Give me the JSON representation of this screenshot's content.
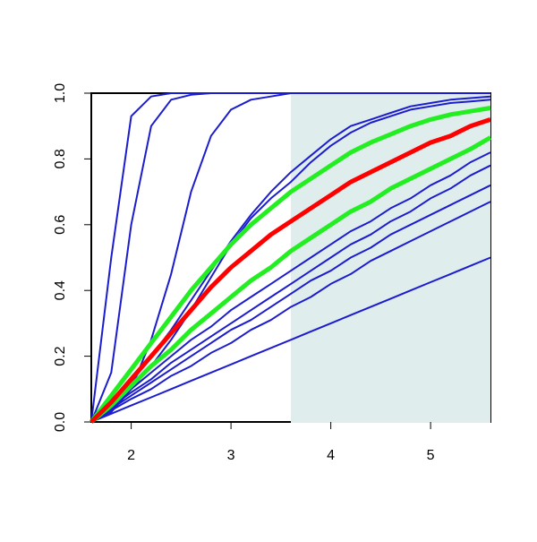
{
  "chart_data": {
    "type": "line",
    "x": [
      1.6,
      1.8,
      2.0,
      2.2,
      2.4,
      2.6,
      2.8,
      3.0,
      3.2,
      3.4,
      3.6,
      3.8,
      4.0,
      4.2,
      4.4,
      4.6,
      4.8,
      5.0,
      5.2,
      5.4,
      5.6
    ],
    "series": [
      {
        "color": "#1c1ccf",
        "values": [
          0,
          0.5,
          0.93,
          0.99,
          1,
          1,
          1,
          1,
          1,
          1,
          1,
          1,
          1,
          1,
          1,
          1,
          1,
          1,
          1,
          1,
          1
        ]
      },
      {
        "color": "#1c1ccf",
        "values": [
          0,
          0.15,
          0.6,
          0.9,
          0.98,
          0.995,
          1,
          1,
          1,
          1,
          1,
          1,
          1,
          1,
          1,
          1,
          1,
          1,
          1,
          1,
          1
        ]
      },
      {
        "color": "#1c1ccf",
        "values": [
          0,
          0.03,
          0.1,
          0.25,
          0.45,
          0.7,
          0.87,
          0.95,
          0.98,
          0.99,
          1,
          1,
          1,
          1,
          1,
          1,
          1,
          1,
          1,
          1,
          1
        ]
      },
      {
        "color": "#1c1ccf",
        "values": [
          0,
          0.04,
          0.1,
          0.17,
          0.25,
          0.34,
          0.44,
          0.54,
          0.62,
          0.68,
          0.73,
          0.79,
          0.84,
          0.88,
          0.91,
          0.93,
          0.95,
          0.96,
          0.97,
          0.975,
          0.98
        ]
      },
      {
        "color": "#1c1ccf",
        "values": [
          0,
          0.05,
          0.12,
          0.2,
          0.28,
          0.37,
          0.46,
          0.55,
          0.63,
          0.7,
          0.76,
          0.81,
          0.86,
          0.9,
          0.92,
          0.94,
          0.96,
          0.97,
          0.98,
          0.985,
          0.99
        ]
      },
      {
        "color": "#1c1ccf",
        "values": [
          0,
          0.05,
          0.1,
          0.15,
          0.2,
          0.25,
          0.29,
          0.34,
          0.38,
          0.42,
          0.46,
          0.5,
          0.54,
          0.58,
          0.61,
          0.65,
          0.68,
          0.72,
          0.75,
          0.79,
          0.82
        ]
      },
      {
        "color": "#1c1ccf",
        "values": [
          0,
          0.045,
          0.09,
          0.13,
          0.18,
          0.22,
          0.26,
          0.3,
          0.34,
          0.38,
          0.42,
          0.46,
          0.5,
          0.54,
          0.57,
          0.61,
          0.64,
          0.68,
          0.71,
          0.75,
          0.78
        ]
      },
      {
        "color": "#1c1ccf",
        "values": [
          0,
          0.04,
          0.08,
          0.12,
          0.16,
          0.2,
          0.24,
          0.28,
          0.31,
          0.35,
          0.39,
          0.43,
          0.46,
          0.5,
          0.53,
          0.57,
          0.6,
          0.63,
          0.66,
          0.69,
          0.72
        ]
      },
      {
        "color": "#1c1ccf",
        "values": [
          0,
          0.035,
          0.07,
          0.1,
          0.14,
          0.17,
          0.21,
          0.24,
          0.28,
          0.31,
          0.35,
          0.38,
          0.42,
          0.45,
          0.49,
          0.52,
          0.55,
          0.58,
          0.61,
          0.64,
          0.67
        ]
      },
      {
        "color": "#1c1ccf",
        "values": [
          0,
          0.025,
          0.05,
          0.075,
          0.1,
          0.125,
          0.15,
          0.175,
          0.2,
          0.225,
          0.25,
          0.275,
          0.3,
          0.325,
          0.35,
          0.375,
          0.4,
          0.425,
          0.45,
          0.475,
          0.5
        ]
      },
      {
        "color": "#22ee22",
        "line_width": 5,
        "values": [
          0,
          0.05,
          0.11,
          0.17,
          0.22,
          0.28,
          0.33,
          0.38,
          0.43,
          0.47,
          0.52,
          0.56,
          0.6,
          0.64,
          0.67,
          0.71,
          0.74,
          0.77,
          0.8,
          0.83,
          0.865
        ]
      },
      {
        "color": "#22ee22",
        "line_width": 5,
        "values": [
          0,
          0.08,
          0.16,
          0.24,
          0.32,
          0.4,
          0.47,
          0.54,
          0.6,
          0.65,
          0.7,
          0.74,
          0.78,
          0.82,
          0.85,
          0.875,
          0.9,
          0.92,
          0.935,
          0.945,
          0.955
        ]
      },
      {
        "color": "#ff0000",
        "line_width": 5,
        "values": [
          0,
          0.06,
          0.13,
          0.2,
          0.27,
          0.34,
          0.41,
          0.47,
          0.52,
          0.57,
          0.61,
          0.65,
          0.69,
          0.73,
          0.76,
          0.79,
          0.82,
          0.85,
          0.87,
          0.9,
          0.92
        ]
      }
    ],
    "shade_x": [
      3.6,
      5.6
    ],
    "shade_color": "#e0eded",
    "xlim": [
      1.6,
      5.6
    ],
    "ylim": [
      0,
      1
    ],
    "xticks": [
      2,
      3,
      4,
      5
    ],
    "yticks": [
      {
        "value": 0,
        "label": "0.0"
      },
      0.2,
      0.4,
      0.6,
      0.8,
      {
        "value": 1,
        "label": "1.0"
      }
    ]
  }
}
